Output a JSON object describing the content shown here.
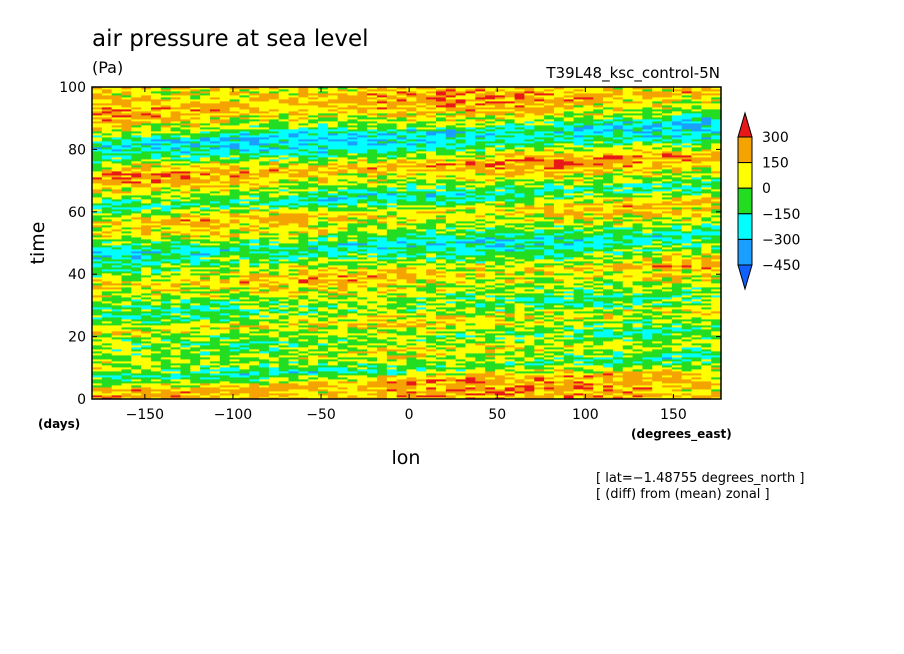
{
  "chart_data": {
    "type": "heatmap",
    "title": "air pressure at sea level",
    "units": "(Pa)",
    "dataset_label": "T39L48_ksc_control-5N",
    "xlabel": "lon",
    "ylabel": "time",
    "x_units": "(degrees_east)",
    "y_units": "(days)",
    "xlim": [
      -180,
      177
    ],
    "ylim": [
      0,
      100
    ],
    "x_ticks": [
      -150,
      -100,
      -50,
      0,
      50,
      100,
      150
    ],
    "y_ticks": [
      0,
      20,
      40,
      60,
      80,
      100
    ],
    "x_tick_labels": [
      "−150",
      "−100",
      "−50",
      "0",
      "50",
      "100",
      "150"
    ],
    "y_tick_labels": [
      "0",
      "20",
      "40",
      "60",
      "80",
      "100"
    ],
    "colorbar": {
      "levels": [
        300,
        150,
        0,
        -150,
        -300,
        -450
      ],
      "labels": [
        "300",
        "150",
        "0",
        "−150",
        "−300",
        "−450"
      ],
      "colors": [
        "#e81818",
        "#f5a300",
        "#ffff00",
        "#22dd22",
        "#00ffff",
        "#1a9eff",
        "#1060ff"
      ]
    },
    "notes": [
      "[ lat=−1.48755 degrees_north ]",
      "[ (diff) from (mean) zonal ]"
    ],
    "bands": [
      {
        "y": 96,
        "v": 120
      },
      {
        "y": 91,
        "v": 200
      },
      {
        "y": 86,
        "v": 60
      },
      {
        "y": 81,
        "v": -260
      },
      {
        "y": 76,
        "v": -120
      },
      {
        "y": 71,
        "v": 220
      },
      {
        "y": 66,
        "v": 60
      },
      {
        "y": 61,
        "v": -180
      },
      {
        "y": 56,
        "v": 140
      },
      {
        "y": 51,
        "v": 40
      },
      {
        "y": 46,
        "v": -220
      },
      {
        "y": 41,
        "v": -60
      },
      {
        "y": 36,
        "v": 160
      },
      {
        "y": 31,
        "v": 20
      },
      {
        "y": 26,
        "v": -100
      },
      {
        "y": 21,
        "v": 110
      },
      {
        "y": 16,
        "v": -80
      },
      {
        "y": 11,
        "v": 60
      },
      {
        "y": 6,
        "v": -140
      },
      {
        "y": 2,
        "v": 180
      }
    ]
  }
}
